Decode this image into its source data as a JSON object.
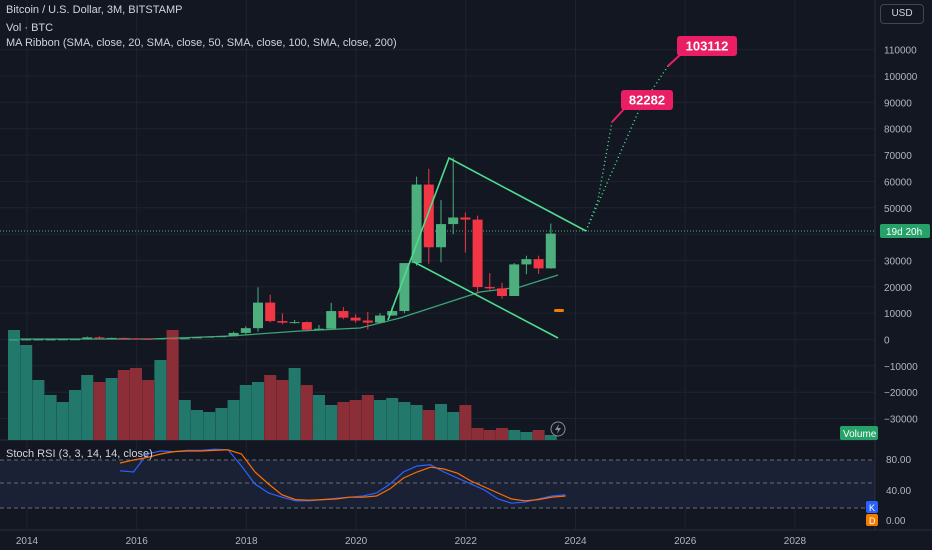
{
  "header": {
    "symbol_line": "Bitcoin / U.S. Dollar, 3M, BITSTAMP",
    "vol_line": "Vol · BTC",
    "ma_line": "MA Ribbon (SMA, close, 20, SMA, close, 50, SMA, close, 100, SMA, close, 200)",
    "currency_button": "USD"
  },
  "rsi_panel": {
    "title": "Stoch RSI (3, 3, 14, 14, close)",
    "ticks": [
      "80.00",
      "40.00",
      "0.00"
    ],
    "k_badge": "K",
    "d_badge": "D"
  },
  "badges": {
    "countdown": "19d 20h",
    "volume": "Volume"
  },
  "colors": {
    "background": "#131722",
    "up": "#4caf7d",
    "down": "#f23645",
    "volume_up": "#22786b",
    "volume_down": "#8c2e38",
    "ma": "#3aa676",
    "trendline": "#4fdc8f",
    "target_label": "#e91e63",
    "k_line": "#2962ff",
    "d_line": "#ff6d00"
  },
  "chart_data": {
    "type": "candlestick",
    "interval": "3M",
    "x_axis_labels": [
      "2014",
      "2016",
      "2018",
      "2020",
      "2022",
      "2024",
      "2026",
      "2028"
    ],
    "y_ticks": [
      "110000",
      "100000",
      "90000",
      "80000",
      "70000",
      "60000",
      "50000",
      "40000",
      "30000",
      "20000",
      "10000",
      "0",
      "−10000",
      "−20000",
      "−30000"
    ],
    "candles": [
      {
        "o": 25,
        "h": 40,
        "l": 20,
        "c": 30
      },
      {
        "o": 30,
        "h": 40,
        "l": 25,
        "c": 35
      },
      {
        "o": 35,
        "h": 45,
        "l": 30,
        "c": 40
      },
      {
        "o": 40,
        "h": 50,
        "l": 35,
        "c": 45
      },
      {
        "o": 45,
        "h": 100,
        "l": 40,
        "c": 95
      },
      {
        "o": 95,
        "h": 130,
        "l": 80,
        "c": 110
      },
      {
        "o": 110,
        "h": 1100,
        "l": 100,
        "c": 800
      },
      {
        "o": 800,
        "h": 1200,
        "l": 350,
        "c": 450
      },
      {
        "o": 450,
        "h": 700,
        "l": 350,
        "c": 600
      },
      {
        "o": 600,
        "h": 680,
        "l": 350,
        "c": 400
      },
      {
        "o": 400,
        "h": 500,
        "l": 180,
        "c": 250
      },
      {
        "o": 250,
        "h": 320,
        "l": 160,
        "c": 240
      },
      {
        "o": 240,
        "h": 420,
        "l": 230,
        "c": 415
      },
      {
        "o": 415,
        "h": 450,
        "l": 360,
        "c": 400
      },
      {
        "o": 400,
        "h": 500,
        "l": 400,
        "c": 450
      },
      {
        "o": 450,
        "h": 1000,
        "l": 450,
        "c": 950
      },
      {
        "o": 950,
        "h": 1200,
        "l": 900,
        "c": 1100
      },
      {
        "o": 1100,
        "h": 1300,
        "l": 1000,
        "c": 1250
      },
      {
        "o": 1250,
        "h": 3000,
        "l": 1200,
        "c": 2500
      },
      {
        "o": 2500,
        "h": 5000,
        "l": 2000,
        "c": 4300
      },
      {
        "o": 4300,
        "h": 19800,
        "l": 3000,
        "c": 14000
      },
      {
        "o": 14000,
        "h": 17000,
        "l": 6500,
        "c": 7000
      },
      {
        "o": 7000,
        "h": 9900,
        "l": 5800,
        "c": 6400
      },
      {
        "o": 6400,
        "h": 7400,
        "l": 6000,
        "c": 6600
      },
      {
        "o": 6600,
        "h": 6800,
        "l": 3100,
        "c": 3700
      },
      {
        "o": 3700,
        "h": 5500,
        "l": 3400,
        "c": 4100
      },
      {
        "o": 4100,
        "h": 13900,
        "l": 4100,
        "c": 10800
      },
      {
        "o": 10800,
        "h": 12300,
        "l": 7700,
        "c": 8300
      },
      {
        "o": 8300,
        "h": 9600,
        "l": 6400,
        "c": 7200
      },
      {
        "o": 7200,
        "h": 10500,
        "l": 3800,
        "c": 6400
      },
      {
        "o": 6400,
        "h": 10000,
        "l": 6400,
        "c": 9100
      },
      {
        "o": 9100,
        "h": 12500,
        "l": 9000,
        "c": 10800
      },
      {
        "o": 10800,
        "h": 29000,
        "l": 10000,
        "c": 29000
      },
      {
        "o": 29000,
        "h": 61800,
        "l": 28000,
        "c": 58800
      },
      {
        "o": 58800,
        "h": 64800,
        "l": 28800,
        "c": 35000
      },
      {
        "o": 35000,
        "h": 52900,
        "l": 29300,
        "c": 43800
      },
      {
        "o": 43800,
        "h": 69000,
        "l": 40000,
        "c": 46300
      },
      {
        "o": 46300,
        "h": 48200,
        "l": 33000,
        "c": 45500
      },
      {
        "o": 45500,
        "h": 47000,
        "l": 17600,
        "c": 19900
      },
      {
        "o": 19900,
        "h": 25200,
        "l": 18200,
        "c": 19400
      },
      {
        "o": 19400,
        "h": 21500,
        "l": 15500,
        "c": 16500
      },
      {
        "o": 16500,
        "h": 29000,
        "l": 16500,
        "c": 28500
      },
      {
        "o": 28500,
        "h": 31800,
        "l": 24800,
        "c": 30500
      },
      {
        "o": 30500,
        "h": 31800,
        "l": 24900,
        "c": 27000
      },
      {
        "o": 27000,
        "h": 44000,
        "l": 26900,
        "c": 40200
      }
    ],
    "annotations": [
      {
        "label": "82282",
        "y": 82282
      },
      {
        "label": "103112",
        "y": 103112
      }
    ],
    "stoch_rsi_k": [
      62,
      60,
      90,
      95,
      94,
      96,
      96,
      98,
      97,
      70,
      40,
      25,
      18,
      12,
      12,
      14,
      16,
      18,
      20,
      25,
      40,
      60,
      70,
      72,
      60,
      50,
      40,
      30,
      15,
      8,
      10,
      15,
      20,
      22
    ],
    "stoch_rsi_d": [
      75,
      80,
      84,
      90,
      94,
      95,
      95,
      96,
      97,
      90,
      60,
      40,
      22,
      14,
      13,
      14,
      15,
      18,
      18,
      20,
      32,
      50,
      60,
      68,
      65,
      58,
      45,
      35,
      25,
      15,
      12,
      14,
      18,
      20
    ]
  }
}
